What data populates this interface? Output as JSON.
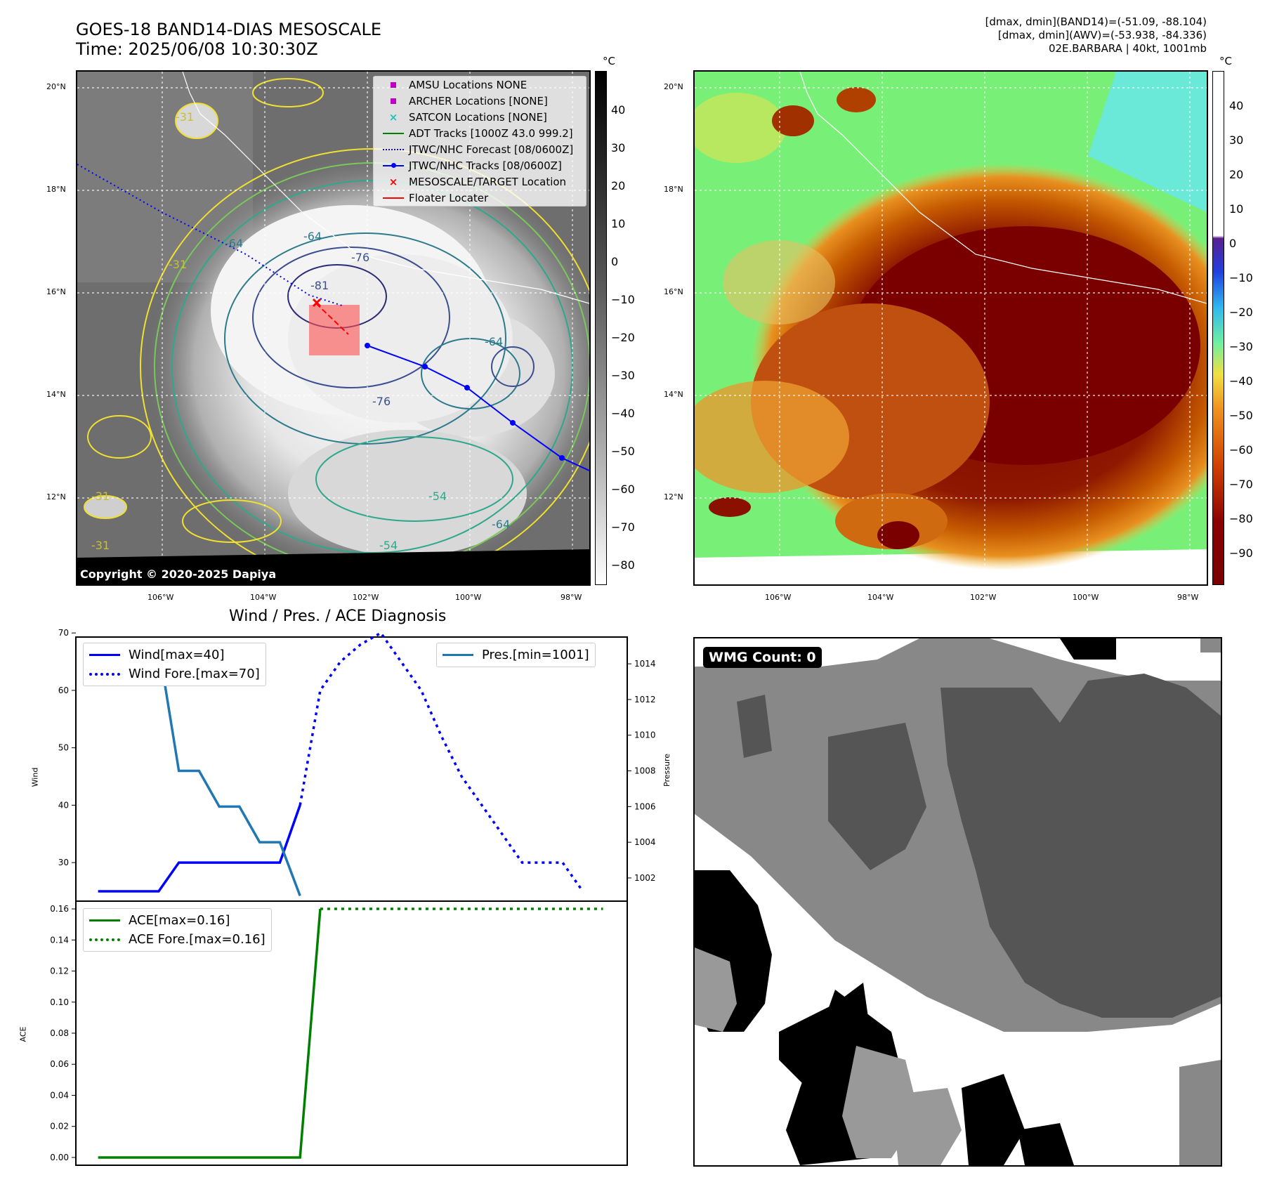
{
  "header": {
    "title_line1": "GOES-18 BAND14-DIAS MESOSCALE",
    "title_line2": "Time: 2025/06/08 10:30:30Z",
    "info_line1": "[dmax, dmin](BAND14)=(-51.09, -88.104)",
    "info_line2": "[dmax, dmin](AWV)=(-53.938, -84.336)",
    "info_line3": "02E.BARBARA | 40kt, 1001mb"
  },
  "map": {
    "lat_labels": [
      "20°N",
      "18°N",
      "16°N",
      "14°N",
      "12°N"
    ],
    "lon_labels": [
      "106°W",
      "104°W",
      "102°W",
      "100°W",
      "98°W"
    ],
    "copyright": "Copyright © 2020-2025 Dapiya",
    "contour_labels": [
      "-81",
      "-76",
      "-64",
      "-64",
      "-54",
      "-31",
      "-31",
      "-31",
      "-31",
      "-76",
      "-64",
      "-54",
      "-64"
    ],
    "legend": [
      {
        "label": "AMSU Locations NONE",
        "icon": "magenta-square"
      },
      {
        "label": "ARCHER Locations [NONE]",
        "icon": "magenta-square"
      },
      {
        "label": "SATCON Locations [NONE]",
        "icon": "cyan-x"
      },
      {
        "label": "ADT Tracks [1000Z 43.0 999.2]",
        "icon": "green-line"
      },
      {
        "label": "JTWC/NHC Forecast [08/0600Z]",
        "icon": "blue-dotted-line"
      },
      {
        "label": "JTWC/NHC Tracks [08/0600Z]",
        "icon": "blue-line-dot"
      },
      {
        "label": "MESOSCALE/TARGET Location",
        "icon": "red-x"
      },
      {
        "label": "Floater Locater",
        "icon": "red-line"
      }
    ]
  },
  "colorbar_left": {
    "unit": "°C",
    "ticks": [
      "40",
      "30",
      "20",
      "10",
      "0",
      "−10",
      "−20",
      "−30",
      "−40",
      "−50",
      "−60",
      "−70",
      "−80"
    ]
  },
  "colorbar_right": {
    "unit": "°C",
    "ticks": [
      "40",
      "30",
      "20",
      "10",
      "0",
      "−10",
      "−20",
      "−30",
      "−40",
      "−50",
      "−60",
      "−70",
      "−80",
      "−90"
    ]
  },
  "colors": {
    "wind": "#0000ff",
    "pressure": "#1f77b4",
    "ace": "#008000",
    "floater": "#ff0000"
  },
  "diagnosis": {
    "title": "Wind / Pres. / ACE Diagnosis",
    "wind_axis_label": "Wind",
    "pressure_axis_label": "Pressure",
    "ace_axis_label": "ACE",
    "legend_wind": "Wind[max=40]",
    "legend_wind_fore": "Wind Fore.[max=70]",
    "legend_pres": "Pres.[min=1001]",
    "legend_ace": "ACE[max=0.16]",
    "legend_ace_fore": "ACE Fore.[max=0.16]",
    "wind_ticks": [
      "70",
      "60",
      "50",
      "40",
      "30"
    ],
    "pres_ticks": [
      "1014",
      "1012",
      "1010",
      "1008",
      "1006",
      "1004",
      "1002"
    ],
    "ace_ticks": [
      "0.16",
      "0.14",
      "0.12",
      "0.10",
      "0.08",
      "0.06",
      "0.04",
      "0.02",
      "0.00"
    ]
  },
  "chart_data": [
    {
      "type": "line",
      "ylabel": "Wind",
      "y2label": "Pressure",
      "x": [
        0,
        1,
        2,
        3,
        4,
        5,
        6,
        7,
        8,
        9,
        10,
        11,
        12,
        13,
        14,
        15,
        16,
        17,
        18,
        19,
        20,
        21,
        22,
        23,
        24
      ],
      "ylim": [
        25,
        71
      ],
      "y2lim": [
        1000.7,
        1015.5
      ],
      "series": [
        {
          "name": "Wind[max=40]",
          "axis": "left",
          "style": "solid",
          "x": [
            0,
            1,
            2,
            3,
            4,
            5,
            6,
            7,
            8,
            9,
            10
          ],
          "values": [
            25,
            25,
            25,
            25,
            30,
            30,
            30,
            30,
            30,
            30,
            40
          ]
        },
        {
          "name": "Wind Fore.[max=70]",
          "axis": "left",
          "style": "dotted",
          "x": [
            10,
            11,
            12,
            13,
            14,
            15,
            16,
            17,
            18,
            19,
            20,
            21,
            22,
            23,
            24
          ],
          "values": [
            40,
            60,
            65,
            68,
            70,
            65,
            60,
            52,
            45,
            40,
            35,
            30,
            30,
            30,
            25
          ]
        },
        {
          "name": "Pres.[min=1001]",
          "axis": "right",
          "style": "solid",
          "x": [
            1,
            2,
            3,
            4,
            5,
            6,
            7,
            8,
            9,
            10
          ],
          "values": [
            1015,
            1015,
            1015,
            1008,
            1008,
            1006,
            1006,
            1004,
            1004,
            1001
          ]
        }
      ]
    },
    {
      "type": "line",
      "ylabel": "ACE",
      "ylim": [
        -0.005,
        0.165
      ],
      "series": [
        {
          "name": "ACE[max=0.16]",
          "style": "solid",
          "x": [
            0,
            10,
            11
          ],
          "values": [
            0.0,
            0.0,
            0.16
          ]
        },
        {
          "name": "ACE Fore.[max=0.16]",
          "style": "dotted",
          "x": [
            11,
            25
          ],
          "values": [
            0.16,
            0.16
          ]
        }
      ]
    }
  ],
  "wmg": {
    "label": "WMG Count: 0"
  }
}
